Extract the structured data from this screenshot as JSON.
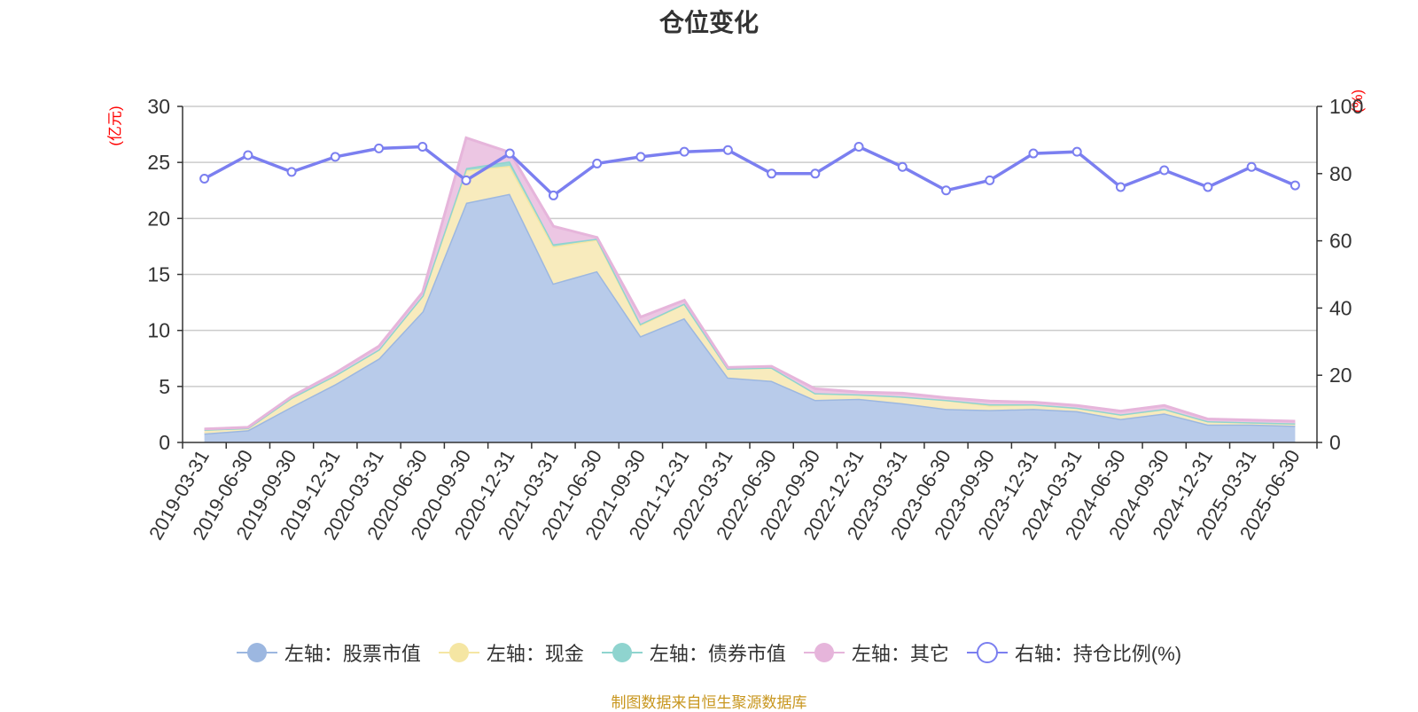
{
  "source_note": "制图数据来自恒生聚源数据库",
  "chart_data": {
    "type": "area",
    "title": "仓位变化",
    "left_axis": {
      "unit": "(亿元)",
      "ylim": [
        0,
        30
      ],
      "ticks": [
        0,
        5,
        10,
        15,
        20,
        25,
        30
      ]
    },
    "right_axis": {
      "unit": "(%)",
      "ylim": [
        0,
        100
      ],
      "ticks": [
        0,
        20,
        40,
        60,
        80,
        100
      ]
    },
    "grid": true,
    "legend_position": "bottom",
    "x": [
      "2019-03-31",
      "2019-06-30",
      "2019-09-30",
      "2019-12-31",
      "2020-03-31",
      "2020-06-30",
      "2020-09-30",
      "2020-12-31",
      "2021-03-31",
      "2021-06-30",
      "2021-09-30",
      "2021-12-31",
      "2022-03-31",
      "2022-06-30",
      "2022-09-30",
      "2022-12-31",
      "2023-03-31",
      "2023-06-30",
      "2023-09-30",
      "2023-12-31",
      "2024-03-31",
      "2024-06-30",
      "2024-09-30",
      "2024-12-31",
      "2025-03-31",
      "2025-06-30"
    ],
    "series": [
      {
        "name": "左轴：股票市值",
        "axis": "left",
        "color": "#9cb7e0",
        "fill": "#b8cbea",
        "values": [
          0.8,
          1.1,
          3.2,
          5.2,
          7.5,
          11.7,
          21.4,
          22.2,
          14.2,
          15.3,
          9.5,
          11.1,
          5.8,
          5.5,
          3.8,
          3.9,
          3.5,
          3.0,
          2.9,
          3.0,
          2.8,
          2.1,
          2.6,
          1.6,
          1.6,
          1.5
        ]
      },
      {
        "name": "左轴：现金",
        "axis": "left",
        "color": "#f5e6a3",
        "fill": "#f8ebbd",
        "values": [
          0.35,
          0.2,
          0.8,
          0.8,
          0.8,
          1.4,
          2.9,
          2.5,
          3.3,
          2.8,
          1.0,
          1.3,
          0.8,
          1.2,
          0.6,
          0.4,
          0.6,
          0.8,
          0.4,
          0.4,
          0.3,
          0.4,
          0.4,
          0.3,
          0.2,
          0.2
        ]
      },
      {
        "name": "左轴：债券市值",
        "axis": "left",
        "color": "#8fd4cf",
        "fill": "#9fd9d3",
        "values": [
          0,
          0,
          0,
          0,
          0,
          0,
          0.2,
          0.4,
          0.2,
          0.1,
          0.1,
          0,
          0,
          0,
          0,
          0,
          0,
          0,
          0.1,
          0,
          0,
          0,
          0,
          0,
          0,
          0
        ]
      },
      {
        "name": "左轴：其它",
        "axis": "left",
        "color": "#e6b5db",
        "fill": "#ecc6e3",
        "values": [
          0.05,
          0.05,
          0.1,
          0.2,
          0.3,
          0.3,
          2.7,
          0.8,
          1.6,
          0.1,
          0.6,
          0.3,
          0.1,
          0.1,
          0.4,
          0.2,
          0.3,
          0.2,
          0.3,
          0.2,
          0.2,
          0.3,
          0.3,
          0.2,
          0.2,
          0.2
        ]
      },
      {
        "name": "右轴：持仓比例(%)",
        "axis": "right",
        "type": "line",
        "color": "#7b7ff0",
        "values": [
          78.5,
          85.5,
          80.5,
          85.0,
          87.5,
          88.0,
          78.0,
          86.0,
          73.5,
          83.0,
          85.0,
          86.5,
          87.0,
          80.0,
          80.0,
          88.0,
          82.0,
          75.0,
          78.0,
          86.0,
          86.5,
          76.0,
          81.0,
          76.0,
          82.0,
          76.5
        ]
      }
    ]
  }
}
